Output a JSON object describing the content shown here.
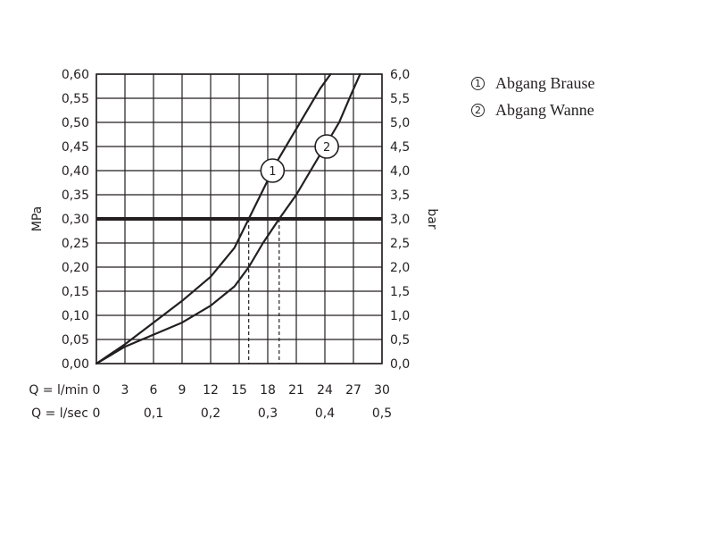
{
  "chart_data": {
    "type": "line",
    "ylabel_left": "MPa",
    "ylabel_right": "bar",
    "ylim": [
      0,
      0.6
    ],
    "xlim": [
      0,
      30
    ],
    "grid": true,
    "y_ticks_left": [
      "0,00",
      "0,05",
      "0,10",
      "0,15",
      "0,20",
      "0,25",
      "0,30",
      "0,35",
      "0,40",
      "0,45",
      "0,50",
      "0,55",
      "0,60"
    ],
    "y_ticks_right": [
      "0,0",
      "0,5",
      "1,0",
      "1,5",
      "2,0",
      "2,5",
      "3,0",
      "3,5",
      "4,0",
      "4,5",
      "5,0",
      "5,5",
      "6,0"
    ],
    "x_rows": [
      {
        "label": "Q = l/min",
        "ticks": [
          "0",
          "3",
          "6",
          "9",
          "12",
          "15",
          "18",
          "21",
          "24",
          "27",
          "30"
        ],
        "positions": [
          0,
          3,
          6,
          9,
          12,
          15,
          18,
          21,
          24,
          27,
          30
        ]
      },
      {
        "label": "Q = l/sec",
        "ticks": [
          "0",
          "0,1",
          "0,2",
          "0,3",
          "0,4",
          "0,5"
        ],
        "positions": [
          0,
          6,
          12,
          18,
          24,
          30
        ]
      }
    ],
    "reference_line": {
      "y": 0.3
    },
    "series": [
      {
        "marker": "1",
        "name": "Abgang Brause",
        "x": [
          0,
          3,
          6,
          9,
          12,
          14.5,
          16,
          17.5,
          19,
          20.5,
          22,
          23.5,
          24.6
        ],
        "y": [
          0,
          0.04,
          0.085,
          0.13,
          0.18,
          0.24,
          0.3,
          0.36,
          0.42,
          0.47,
          0.52,
          0.57,
          0.6
        ],
        "crossing_x": 16.0,
        "marker_at": [
          18.5,
          0.4
        ]
      },
      {
        "marker": "2",
        "name": "Abgang Wanne",
        "x": [
          0,
          3,
          6,
          9,
          12,
          14.5,
          16,
          17.5,
          19.2,
          21,
          22.5,
          24,
          25.5,
          26.8,
          27.7
        ],
        "y": [
          0,
          0.035,
          0.06,
          0.085,
          0.12,
          0.16,
          0.2,
          0.25,
          0.3,
          0.35,
          0.4,
          0.45,
          0.5,
          0.56,
          0.6
        ],
        "crossing_x": 19.2,
        "marker_at": [
          24.2,
          0.45
        ]
      }
    ]
  },
  "legend": [
    {
      "badge": "1",
      "label": "Abgang Brause"
    },
    {
      "badge": "2",
      "label": "Abgang Wanne"
    }
  ]
}
